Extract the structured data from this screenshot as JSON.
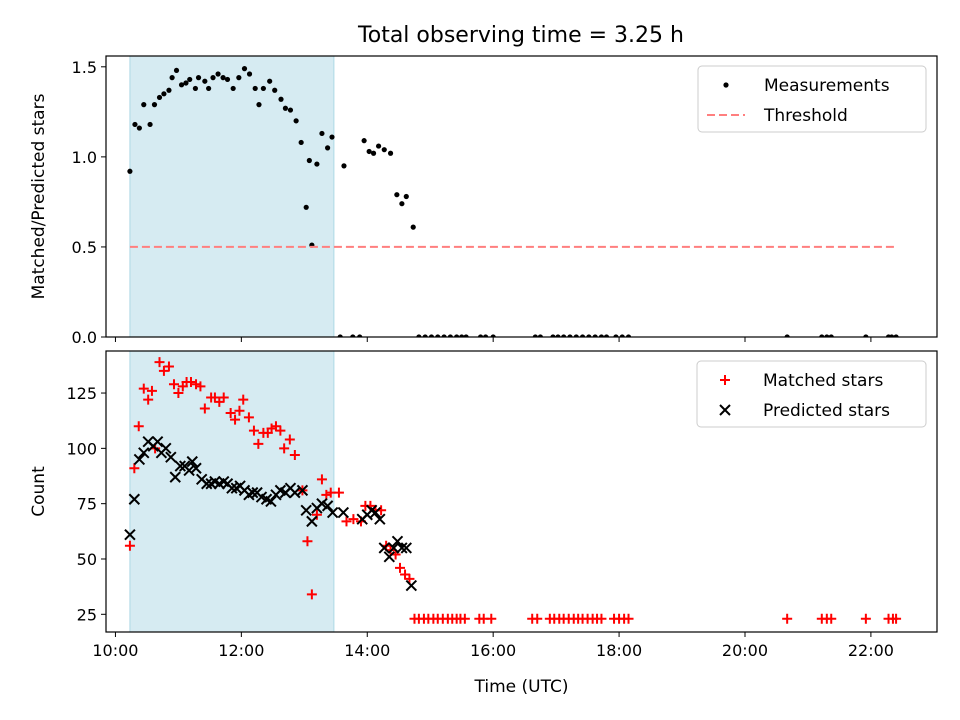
{
  "figure": {
    "title": "Total observing time = 3.25 h"
  },
  "chart_data": [
    {
      "type": "scatter",
      "ylabel": "Matched/Predicted stars",
      "xlabel": "",
      "xlim": [
        9.85,
        23.05
      ],
      "ylim": [
        0,
        1.56
      ],
      "yticks": [
        0,
        0.5,
        1.0,
        1.5
      ],
      "ytick_labels": [
        "0.0",
        "0.5",
        "1.0",
        "1.5"
      ],
      "xticks": [
        10,
        12,
        14,
        16,
        18,
        20,
        22
      ],
      "shaded_region": {
        "x_start": 10.23,
        "x_end": 13.47,
        "color": "#add8e6"
      },
      "legend": {
        "position": "upper right",
        "entries": [
          "Measurements",
          "Threshold"
        ]
      },
      "series": [
        {
          "name": "Measurements",
          "marker": "dot",
          "color": "#000000",
          "points": [
            [
              10.23,
              0.92
            ],
            [
              10.31,
              1.18
            ],
            [
              10.38,
              1.16
            ],
            [
              10.45,
              1.29
            ],
            [
              10.55,
              1.18
            ],
            [
              10.62,
              1.29
            ],
            [
              10.7,
              1.33
            ],
            [
              10.77,
              1.35
            ],
            [
              10.85,
              1.37
            ],
            [
              10.9,
              1.44
            ],
            [
              10.97,
              1.48
            ],
            [
              11.05,
              1.4
            ],
            [
              11.12,
              1.41
            ],
            [
              11.18,
              1.43
            ],
            [
              11.27,
              1.38
            ],
            [
              11.32,
              1.44
            ],
            [
              11.42,
              1.42
            ],
            [
              11.48,
              1.38
            ],
            [
              11.55,
              1.44
            ],
            [
              11.63,
              1.46
            ],
            [
              11.71,
              1.44
            ],
            [
              11.78,
              1.43
            ],
            [
              11.87,
              1.38
            ],
            [
              11.96,
              1.44
            ],
            [
              12.05,
              1.49
            ],
            [
              12.13,
              1.46
            ],
            [
              12.22,
              1.38
            ],
            [
              12.28,
              1.29
            ],
            [
              12.35,
              1.38
            ],
            [
              12.45,
              1.42
            ],
            [
              12.53,
              1.37
            ],
            [
              12.63,
              1.32
            ],
            [
              12.7,
              1.27
            ],
            [
              12.78,
              1.26
            ],
            [
              12.87,
              1.2
            ],
            [
              12.95,
              1.08
            ],
            [
              13.03,
              0.72
            ],
            [
              13.08,
              0.98
            ],
            [
              13.12,
              0.51
            ],
            [
              13.2,
              0.96
            ],
            [
              13.28,
              1.13
            ],
            [
              13.37,
              1.05
            ],
            [
              13.44,
              1.11
            ],
            [
              13.63,
              0.95
            ],
            [
              13.95,
              1.09
            ],
            [
              14.03,
              1.03
            ],
            [
              14.1,
              1.02
            ],
            [
              14.18,
              1.06
            ],
            [
              14.27,
              1.04
            ],
            [
              14.37,
              1.02
            ],
            [
              14.47,
              0.79
            ],
            [
              14.55,
              0.74
            ],
            [
              14.62,
              0.78
            ],
            [
              14.73,
              0.61
            ],
            [
              13.57,
              0.0
            ],
            [
              13.77,
              0.0
            ],
            [
              13.88,
              0.0
            ],
            [
              14.82,
              0.0
            ],
            [
              14.92,
              0.0
            ],
            [
              15.02,
              0.0
            ],
            [
              15.12,
              0.0
            ],
            [
              15.22,
              0.0
            ],
            [
              15.32,
              0.0
            ],
            [
              15.42,
              0.0
            ],
            [
              15.5,
              0.0
            ],
            [
              15.57,
              0.0
            ],
            [
              15.8,
              0.0
            ],
            [
              15.88,
              0.0
            ],
            [
              16.0,
              0.0
            ],
            [
              16.67,
              0.0
            ],
            [
              16.75,
              0.0
            ],
            [
              16.95,
              0.0
            ],
            [
              17.03,
              0.0
            ],
            [
              17.12,
              0.0
            ],
            [
              17.22,
              0.0
            ],
            [
              17.32,
              0.0
            ],
            [
              17.42,
              0.0
            ],
            [
              17.52,
              0.0
            ],
            [
              17.62,
              0.0
            ],
            [
              17.72,
              0.0
            ],
            [
              17.8,
              0.0
            ],
            [
              17.95,
              0.0
            ],
            [
              18.05,
              0.0
            ],
            [
              18.15,
              0.0
            ],
            [
              20.67,
              0.0
            ],
            [
              21.22,
              0.0
            ],
            [
              21.3,
              0.0
            ],
            [
              21.37,
              0.0
            ],
            [
              21.92,
              0.0
            ],
            [
              22.28,
              0.0
            ],
            [
              22.33,
              0.0
            ],
            [
              22.4,
              0.0
            ]
          ]
        },
        {
          "name": "Threshold",
          "marker": "dashed-line",
          "color": "#ff7f7f",
          "x": [
            10.23,
            22.4
          ],
          "y": [
            0.5,
            0.5
          ]
        }
      ]
    },
    {
      "type": "scatter",
      "ylabel": "Count",
      "xlabel": "Time (UTC)",
      "xlim": [
        9.85,
        23.05
      ],
      "ylim": [
        17,
        144
      ],
      "yticks": [
        25,
        50,
        75,
        100,
        125
      ],
      "ytick_labels": [
        "25",
        "50",
        "75",
        "100",
        "125"
      ],
      "xticks": [
        10,
        12,
        14,
        16,
        18,
        20,
        22
      ],
      "xtick_labels": [
        "10:00",
        "12:00",
        "14:00",
        "16:00",
        "18:00",
        "20:00",
        "22:00"
      ],
      "shaded_region": {
        "x_start": 10.23,
        "x_end": 13.47,
        "color": "#add8e6"
      },
      "legend": {
        "position": "upper right",
        "entries": [
          "Matched stars",
          "Predicted stars"
        ]
      },
      "series": [
        {
          "name": "Matched stars",
          "marker": "plus",
          "color": "#ff0000",
          "points": [
            [
              10.23,
              56
            ],
            [
              10.3,
              91
            ],
            [
              10.37,
              110
            ],
            [
              10.45,
              127
            ],
            [
              10.52,
              122
            ],
            [
              10.58,
              126
            ],
            [
              10.63,
              100
            ],
            [
              10.7,
              139
            ],
            [
              10.77,
              135
            ],
            [
              10.85,
              137
            ],
            [
              10.93,
              129
            ],
            [
              11.0,
              125
            ],
            [
              11.07,
              128
            ],
            [
              11.13,
              130
            ],
            [
              11.2,
              130
            ],
            [
              11.28,
              129
            ],
            [
              11.35,
              128
            ],
            [
              11.42,
              118
            ],
            [
              11.52,
              123
            ],
            [
              11.58,
              123
            ],
            [
              11.65,
              121
            ],
            [
              11.72,
              123
            ],
            [
              11.83,
              116
            ],
            [
              11.9,
              113
            ],
            [
              11.97,
              117
            ],
            [
              12.03,
              122
            ],
            [
              12.12,
              114
            ],
            [
              12.2,
              108
            ],
            [
              12.27,
              102
            ],
            [
              12.35,
              107
            ],
            [
              12.42,
              107
            ],
            [
              12.48,
              109
            ],
            [
              12.55,
              110
            ],
            [
              12.62,
              108
            ],
            [
              12.68,
              100
            ],
            [
              12.77,
              104
            ],
            [
              12.85,
              97
            ],
            [
              12.97,
              81
            ],
            [
              13.05,
              58
            ],
            [
              13.12,
              34
            ],
            [
              13.2,
              70
            ],
            [
              13.28,
              86
            ],
            [
              13.35,
              79
            ],
            [
              13.42,
              80
            ],
            [
              13.55,
              80
            ],
            [
              13.67,
              67
            ],
            [
              13.78,
              68
            ],
            [
              13.9,
              67
            ],
            [
              13.97,
              74
            ],
            [
              14.05,
              74
            ],
            [
              14.13,
              72
            ],
            [
              14.22,
              72
            ],
            [
              14.3,
              56
            ],
            [
              14.37,
              54
            ],
            [
              14.45,
              52
            ],
            [
              14.52,
              46
            ],
            [
              14.6,
              43
            ],
            [
              14.67,
              41
            ],
            [
              14.75,
              23
            ],
            [
              14.82,
              23
            ],
            [
              14.9,
              23
            ],
            [
              14.97,
              23
            ],
            [
              15.05,
              23
            ],
            [
              15.12,
              23
            ],
            [
              15.2,
              23
            ],
            [
              15.28,
              23
            ],
            [
              15.35,
              23
            ],
            [
              15.42,
              23
            ],
            [
              15.48,
              23
            ],
            [
              15.55,
              23
            ],
            [
              15.78,
              23
            ],
            [
              15.85,
              23
            ],
            [
              15.97,
              23
            ],
            [
              16.62,
              23
            ],
            [
              16.7,
              23
            ],
            [
              16.9,
              23
            ],
            [
              16.97,
              23
            ],
            [
              17.05,
              23
            ],
            [
              17.12,
              23
            ],
            [
              17.2,
              23
            ],
            [
              17.28,
              23
            ],
            [
              17.35,
              23
            ],
            [
              17.42,
              23
            ],
            [
              17.5,
              23
            ],
            [
              17.58,
              23
            ],
            [
              17.65,
              23
            ],
            [
              17.72,
              23
            ],
            [
              17.92,
              23
            ],
            [
              18.0,
              23
            ],
            [
              18.08,
              23
            ],
            [
              18.15,
              23
            ],
            [
              20.67,
              23
            ],
            [
              21.22,
              23
            ],
            [
              21.3,
              23
            ],
            [
              21.37,
              23
            ],
            [
              21.92,
              23
            ],
            [
              22.28,
              23
            ],
            [
              22.35,
              23
            ],
            [
              22.4,
              23
            ]
          ]
        },
        {
          "name": "Predicted stars",
          "marker": "x",
          "color": "#000000",
          "points": [
            [
              10.23,
              61
            ],
            [
              10.3,
              77
            ],
            [
              10.38,
              95
            ],
            [
              10.45,
              98
            ],
            [
              10.52,
              103
            ],
            [
              10.6,
              101
            ],
            [
              10.67,
              103
            ],
            [
              10.73,
              98
            ],
            [
              10.8,
              100
            ],
            [
              10.88,
              96
            ],
            [
              10.95,
              87
            ],
            [
              11.03,
              92
            ],
            [
              11.1,
              92
            ],
            [
              11.17,
              90
            ],
            [
              11.22,
              94
            ],
            [
              11.28,
              91
            ],
            [
              11.37,
              86
            ],
            [
              11.45,
              84
            ],
            [
              11.52,
              84
            ],
            [
              11.58,
              85
            ],
            [
              11.65,
              84
            ],
            [
              11.72,
              85
            ],
            [
              11.78,
              84
            ],
            [
              11.85,
              82
            ],
            [
              11.92,
              82
            ],
            [
              11.98,
              83
            ],
            [
              12.05,
              81
            ],
            [
              12.12,
              79
            ],
            [
              12.18,
              80
            ],
            [
              12.25,
              80
            ],
            [
              12.32,
              78
            ],
            [
              12.4,
              77
            ],
            [
              12.47,
              76
            ],
            [
              12.55,
              79
            ],
            [
              12.62,
              81
            ],
            [
              12.7,
              80
            ],
            [
              12.78,
              82
            ],
            [
              12.85,
              80
            ],
            [
              12.97,
              81
            ],
            [
              13.03,
              72
            ],
            [
              13.12,
              67
            ],
            [
              13.2,
              73
            ],
            [
              13.28,
              75
            ],
            [
              13.37,
              74
            ],
            [
              13.45,
              71
            ],
            [
              13.62,
              71
            ],
            [
              13.92,
              68
            ],
            [
              14.0,
              70
            ],
            [
              14.07,
              72
            ],
            [
              14.13,
              71
            ],
            [
              14.2,
              68
            ],
            [
              14.27,
              55
            ],
            [
              14.35,
              51
            ],
            [
              14.42,
              55
            ],
            [
              14.48,
              58
            ],
            [
              14.55,
              55
            ],
            [
              14.62,
              55
            ],
            [
              14.7,
              38
            ]
          ]
        }
      ]
    }
  ]
}
